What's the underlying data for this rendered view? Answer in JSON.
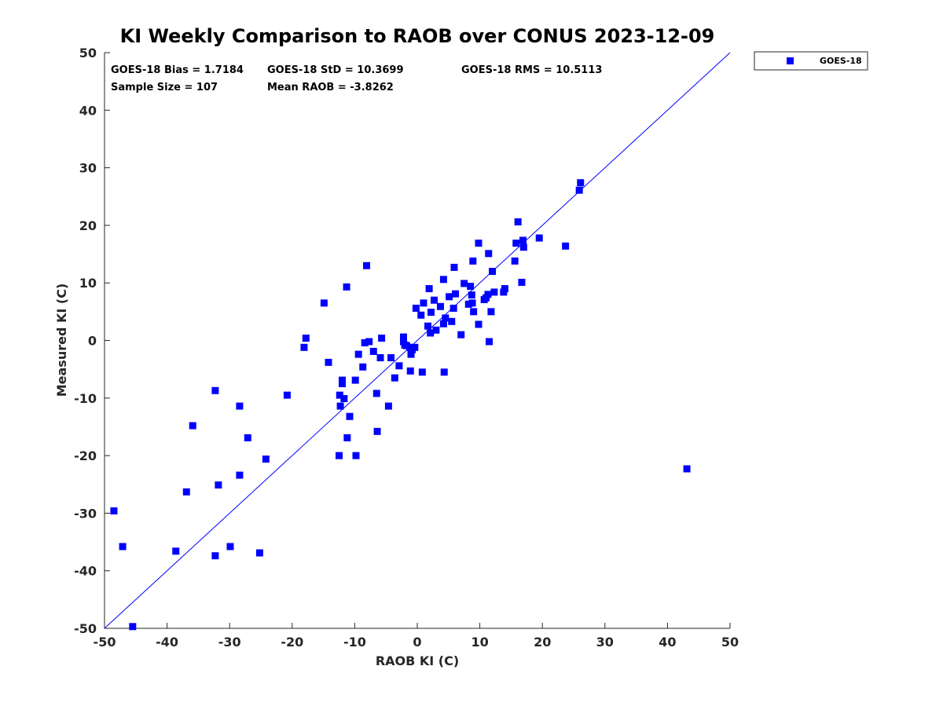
{
  "chart_data": {
    "type": "scatter",
    "title": "KI Weekly Comparison to RAOB over CONUS 2023-12-09",
    "xlabel": "RAOB KI (C)",
    "ylabel": "Measured KI (C)",
    "xlim": [
      -50,
      50
    ],
    "ylim": [
      -50,
      50
    ],
    "xticks": [
      "-50",
      "-40",
      "-30",
      "-20",
      "-10",
      "0",
      "10",
      "20",
      "30",
      "40",
      "50"
    ],
    "yticks": [
      "50",
      "40",
      "30",
      "20",
      "10",
      "0",
      "-10",
      "-20",
      "-30",
      "-40",
      "-50"
    ],
    "grid": false,
    "legend_position": "outside top-right",
    "stats": {
      "bias": "GOES-18 Bias = 1.7184",
      "std": "GOES-18 StD = 10.3699",
      "rms": "GOES-18 RMS = 10.5113",
      "sample": "Sample Size = 107",
      "mean": "Mean RAOB = -3.8262"
    },
    "reference_line": {
      "from": [
        -50,
        -50
      ],
      "to": [
        50,
        50
      ],
      "color": "#0000ff"
    },
    "series": [
      {
        "name": "GOES-18",
        "color": "#0000ff",
        "marker": "square",
        "points": [
          [
            -48.5,
            -29.6
          ],
          [
            -47.1,
            -35.8
          ],
          [
            -45.5,
            -49.7
          ],
          [
            -38.6,
            -36.6
          ],
          [
            -36.9,
            -26.3
          ],
          [
            -35.9,
            -14.8
          ],
          [
            -32.3,
            -8.7
          ],
          [
            -32.3,
            -37.4
          ],
          [
            -31.8,
            -25.1
          ],
          [
            -29.9,
            -35.8
          ],
          [
            -28.4,
            -11.4
          ],
          [
            -28.4,
            -23.4
          ],
          [
            -27.1,
            -16.9
          ],
          [
            -25.2,
            -36.9
          ],
          [
            -24.2,
            -20.6
          ],
          [
            -20.8,
            -9.5
          ],
          [
            -18.1,
            -1.2
          ],
          [
            -17.8,
            0.4
          ],
          [
            -14.9,
            6.5
          ],
          [
            -14.2,
            -3.8
          ],
          [
            -12.5,
            -20.0
          ],
          [
            -12.4,
            -9.5
          ],
          [
            -12.3,
            -11.4
          ],
          [
            -12.0,
            -7.5
          ],
          [
            -12.0,
            -6.9
          ],
          [
            -11.7,
            -10.1
          ],
          [
            -11.3,
            9.3
          ],
          [
            -11.2,
            -16.9
          ],
          [
            -10.8,
            -13.2
          ],
          [
            -9.9,
            -6.9
          ],
          [
            -9.8,
            -20.0
          ],
          [
            -9.4,
            -2.4
          ],
          [
            -8.7,
            -4.6
          ],
          [
            -8.4,
            -0.4
          ],
          [
            -8.1,
            13.0
          ],
          [
            -7.7,
            -0.2
          ],
          [
            -7.0,
            -1.9
          ],
          [
            -6.5,
            -9.2
          ],
          [
            -6.4,
            -15.8
          ],
          [
            -5.9,
            -3.0
          ],
          [
            -5.7,
            0.4
          ],
          [
            -4.6,
            -11.4
          ],
          [
            -4.2,
            -3.0
          ],
          [
            -3.6,
            -6.5
          ],
          [
            -2.9,
            -4.4
          ],
          [
            -2.2,
            0.6
          ],
          [
            -2.2,
            -0.2
          ],
          [
            -2.0,
            -0.8
          ],
          [
            -1.7,
            -0.9
          ],
          [
            -1.2,
            -1.2
          ],
          [
            -1.1,
            -5.3
          ],
          [
            -1.0,
            -2.4
          ],
          [
            -0.8,
            -1.6
          ],
          [
            -0.4,
            -1.2
          ],
          [
            -0.2,
            5.6
          ],
          [
            0.6,
            4.4
          ],
          [
            0.8,
            -5.5
          ],
          [
            1.0,
            6.5
          ],
          [
            1.7,
            2.5
          ],
          [
            1.9,
            9.0
          ],
          [
            2.1,
            1.3
          ],
          [
            2.2,
            4.9
          ],
          [
            2.7,
            7.0
          ],
          [
            3.0,
            1.8
          ],
          [
            3.7,
            5.9
          ],
          [
            4.2,
            2.9
          ],
          [
            4.2,
            10.6
          ],
          [
            4.3,
            -5.5
          ],
          [
            4.5,
            3.9
          ],
          [
            5.1,
            7.6
          ],
          [
            5.5,
            3.3
          ],
          [
            5.8,
            5.6
          ],
          [
            5.9,
            12.7
          ],
          [
            6.1,
            8.1
          ],
          [
            7.0,
            1.0
          ],
          [
            7.5,
            9.9
          ],
          [
            8.2,
            6.3
          ],
          [
            8.5,
            9.4
          ],
          [
            8.7,
            7.9
          ],
          [
            8.8,
            6.5
          ],
          [
            8.9,
            13.8
          ],
          [
            9.0,
            5.0
          ],
          [
            9.8,
            2.8
          ],
          [
            9.8,
            16.9
          ],
          [
            10.7,
            7.1
          ],
          [
            11.0,
            7.4
          ],
          [
            11.3,
            8.0
          ],
          [
            11.4,
            15.1
          ],
          [
            11.5,
            -0.2
          ],
          [
            11.8,
            5.0
          ],
          [
            12.0,
            12.0
          ],
          [
            12.3,
            8.4
          ],
          [
            13.8,
            8.4
          ],
          [
            14.0,
            9.0
          ],
          [
            15.6,
            13.8
          ],
          [
            15.8,
            16.9
          ],
          [
            16.1,
            20.6
          ],
          [
            16.7,
            10.1
          ],
          [
            16.9,
            17.4
          ],
          [
            17.0,
            16.2
          ],
          [
            19.5,
            17.8
          ],
          [
            23.7,
            16.4
          ],
          [
            25.9,
            26.1
          ],
          [
            26.1,
            27.4
          ],
          [
            43.1,
            -22.3
          ]
        ]
      }
    ]
  }
}
